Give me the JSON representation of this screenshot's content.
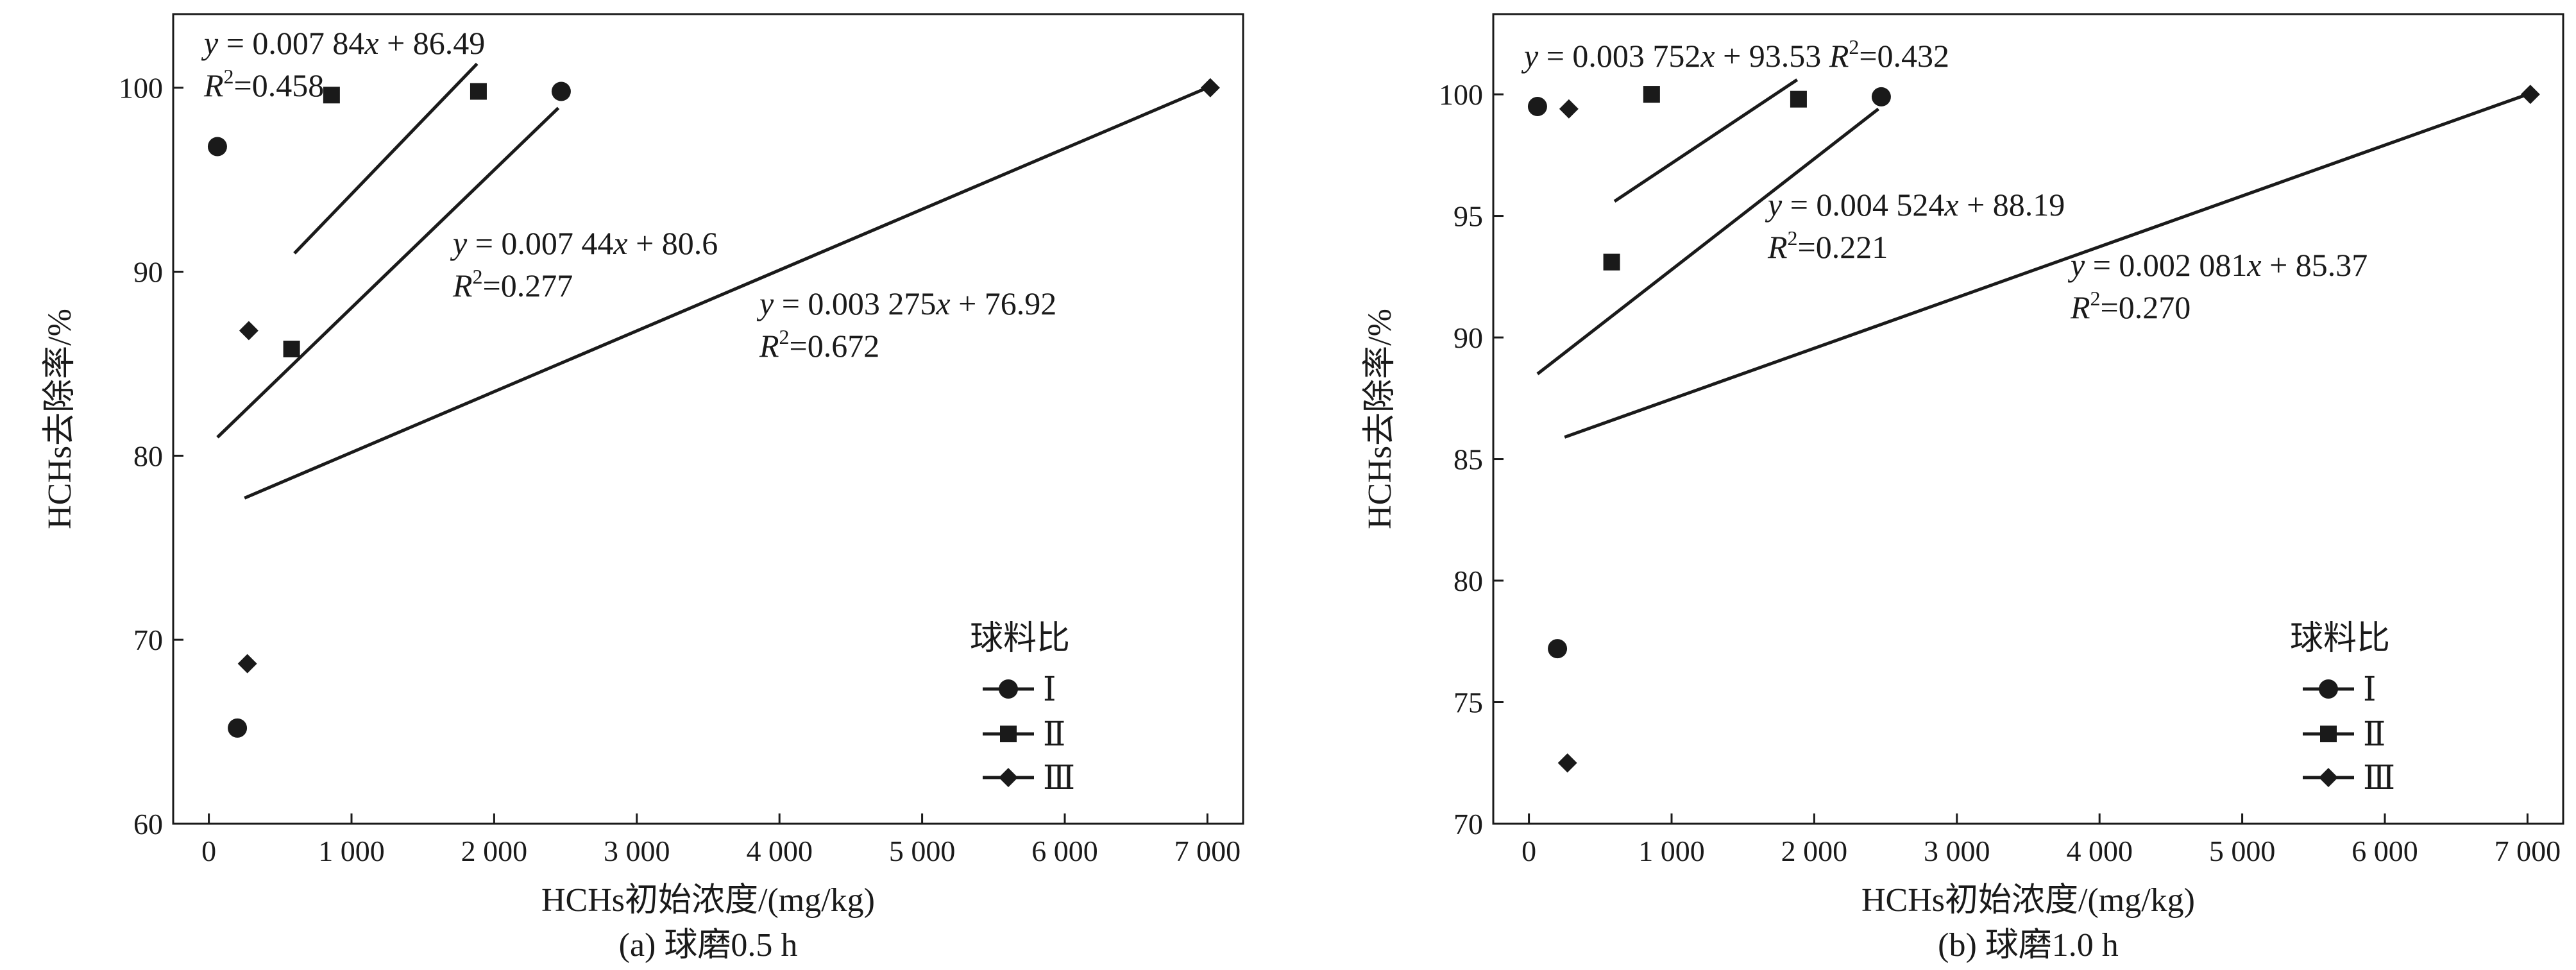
{
  "chart_data": [
    {
      "type": "scatter",
      "caption": "(a) 球磨0.5 h",
      "xlabel": "HCHs初始浓度/(mg/kg)",
      "ylabel": "HCHs去除率/%",
      "xlim": [
        -250,
        7250
      ],
      "ylim": [
        60,
        104
      ],
      "xticks": [
        "0",
        "1 000",
        "2 000",
        "3 000",
        "4 000",
        "5 000",
        "6 000",
        "7 000"
      ],
      "yticks": [
        "60",
        "70",
        "80",
        "90",
        "100"
      ],
      "legend": {
        "title": "球料比",
        "position": "lower-right"
      },
      "series": [
        {
          "name": "Ⅰ",
          "marker": "circle",
          "points": [
            [
              60,
              96.8
            ],
            [
              200,
              65.2
            ],
            [
              2470,
              99.8
            ]
          ]
        },
        {
          "name": "Ⅱ",
          "marker": "square",
          "points": [
            [
              580,
              85.8
            ],
            [
              860,
              99.6
            ],
            [
              1890,
              99.8
            ]
          ]
        },
        {
          "name": "Ⅲ",
          "marker": "diamond",
          "points": [
            [
              280,
              86.8
            ],
            [
              270,
              68.7
            ],
            [
              7020,
              100.0
            ]
          ]
        }
      ],
      "fits": [
        {
          "eq_text": "= 0.007 84",
          "eq_tail": "+ 86.49",
          "r2_text": "=0.458",
          "x_from": 600,
          "x_to": 1880,
          "y_from": 91.0,
          "y_to": 101.3
        },
        {
          "eq_text": "= 0.007 44",
          "eq_tail": "+ 80.6",
          "r2_text": "=0.277",
          "x_from": 60,
          "x_to": 2450,
          "y_from": 81.0,
          "y_to": 98.9
        },
        {
          "eq_text": "= 0.003 275",
          "eq_tail": "+ 76.92",
          "r2_text": "=0.672",
          "x_from": 250,
          "x_to": 7000,
          "y_from": 77.7,
          "y_to": 100.0
        }
      ]
    },
    {
      "type": "scatter",
      "caption": "(b) 球磨1.0 h",
      "xlabel": "HCHs初始浓度/(mg/kg)",
      "ylabel": "HCHs去除率/%",
      "xlim": [
        -250,
        7250
      ],
      "ylim": [
        70,
        103.3
      ],
      "xticks": [
        "0",
        "1 000",
        "2 000",
        "3 000",
        "4 000",
        "5 000",
        "6 000",
        "7 000"
      ],
      "yticks": [
        "70",
        "75",
        "80",
        "85",
        "90",
        "95",
        "100"
      ],
      "legend": {
        "title": "球料比",
        "position": "lower-right"
      },
      "series": [
        {
          "name": "Ⅰ",
          "marker": "circle",
          "points": [
            [
              60,
              99.5
            ],
            [
              200,
              77.2
            ],
            [
              2470,
              99.9
            ]
          ]
        },
        {
          "name": "Ⅱ",
          "marker": "square",
          "points": [
            [
              580,
              93.1
            ],
            [
              860,
              100.0
            ],
            [
              1890,
              99.8
            ]
          ]
        },
        {
          "name": "Ⅲ",
          "marker": "diamond",
          "points": [
            [
              280,
              99.4
            ],
            [
              270,
              72.5
            ],
            [
              7020,
              100.0
            ]
          ]
        }
      ],
      "fits": [
        {
          "eq_text": "= 0.003 752",
          "eq_tail": "+ 93.53",
          "r2_text": "=0.432",
          "x_from": 600,
          "x_to": 1880,
          "y_from": 95.6,
          "y_to": 100.6
        },
        {
          "eq_text": "= 0.004 524",
          "eq_tail": "+ 88.19",
          "r2_text": "=0.221",
          "x_from": 60,
          "x_to": 2450,
          "y_from": 88.5,
          "y_to": 99.4
        },
        {
          "eq_text": "= 0.002 081",
          "eq_tail": "+ 85.37",
          "r2_text": "=0.270",
          "x_from": 250,
          "x_to": 7000,
          "y_from": 85.9,
          "y_to": 100.0
        }
      ]
    }
  ]
}
